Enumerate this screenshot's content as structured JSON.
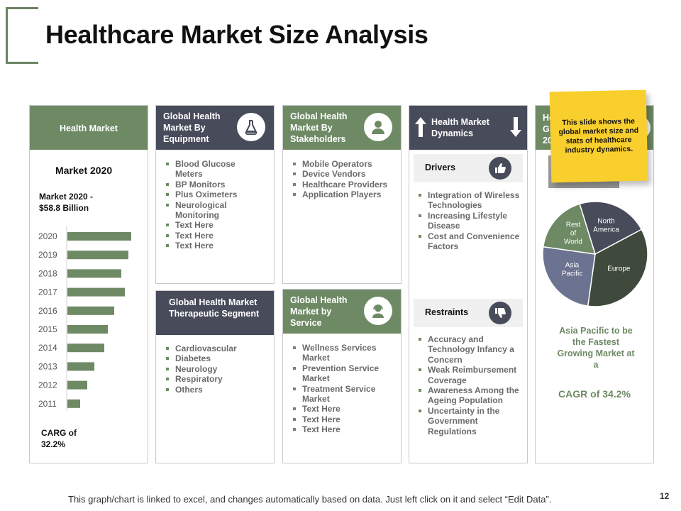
{
  "title": "Healthcare Market Size Analysis",
  "col1": {
    "header": "Health Market",
    "market_heading": "Market 2020",
    "market_value_line1": "Market 2020 -",
    "market_value_line2": "$58.8 Billion",
    "carg_line1": "CARG of",
    "carg_line2": "32.2%"
  },
  "chart_data": {
    "type": "bar",
    "orientation": "horizontal",
    "categories": [
      "2020",
      "2019",
      "2018",
      "2017",
      "2016",
      "2015",
      "2014",
      "2013",
      "2012",
      "2011"
    ],
    "values": [
      90,
      86,
      76,
      81,
      66,
      57,
      52,
      38,
      28,
      18
    ],
    "title": "",
    "xlabel": "",
    "ylabel": "",
    "xlim": [
      0,
      100
    ],
    "bar_color": "#6e8a65"
  },
  "col2": {
    "header": "Global Health Market By Equipment",
    "items": [
      "Blood Glucose Meters",
      "BP Monitors",
      "Plus Oximeters",
      "Neurological Monitoring",
      "Text Here",
      "Text Here",
      "Text Here"
    ],
    "header2": "Global Health Market Therapeutic Segment",
    "items2": [
      "Cardiovascular",
      "Diabetes",
      "Neurology",
      "Respiratory",
      "Others"
    ]
  },
  "col3": {
    "header": "Global Health Market By Stakeholders",
    "items": [
      "Mobile Operators",
      "Device Vendors",
      "Healthcare Providers",
      "Application Players"
    ],
    "header2": "Global Health Market by Service",
    "items2": [
      "Wellness Services Market",
      "Prevention Service Market",
      "Treatment Service Market",
      "Text Here",
      "Text Here",
      "Text Here"
    ]
  },
  "col4": {
    "header": "Health Market Dynamics",
    "drivers_label": "Drivers",
    "drivers": [
      "Integration of Wireless Technologies",
      "Increasing Lifestyle Disease",
      "Cost and Convenience Factors"
    ],
    "restraints_label": "Restraints",
    "restraints": [
      "Accuracy and Technology Infancy a Concern",
      "Weak Reimbursement Coverage",
      "Awareness Among the Ageing Population",
      "Uncertainty in the Government Regulations"
    ]
  },
  "col5": {
    "header_partial": "He\nGl\n20",
    "pie": [
      {
        "label": "North America",
        "value": 22,
        "color": "#474b5a"
      },
      {
        "label": "Europe",
        "value": 35,
        "color": "#3f4a3c"
      },
      {
        "label": "Asia Pacific",
        "value": 25,
        "color": "#6c7390"
      },
      {
        "label": "Rest of World",
        "value": 18,
        "color": "#6e8a65"
      }
    ],
    "caption": "Asia Pacific to be the Fastest Growing Market at a",
    "cagr": "CAGR of 34.2%"
  },
  "note": "This slide shows the global market size and stats of healthcare industry dynamics.",
  "footer": "This graph/chart is linked to excel, and changes automatically based on data.  Just left click on it and select “Edit Data”.",
  "page_number": "12"
}
